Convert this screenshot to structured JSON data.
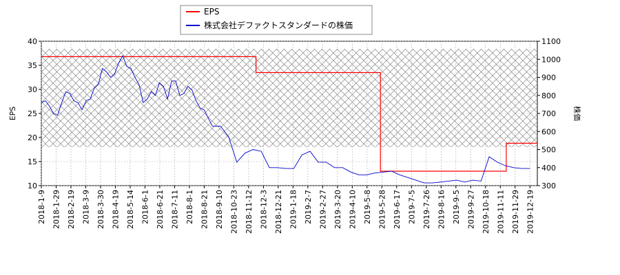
{
  "chart_data": {
    "type": "line",
    "legend": {
      "placement": "top",
      "entries": [
        {
          "label": "EPS",
          "color": "#ff0000"
        },
        {
          "label": "株式会社デファクトスタンダードの株価",
          "color": "#0000cc"
        }
      ]
    },
    "axes": {
      "y_left": {
        "label": "EPS",
        "ylim": [
          10,
          40
        ],
        "ticks": [
          "10",
          "15",
          "20",
          "25",
          "30",
          "35",
          "40"
        ]
      },
      "y_right": {
        "label": "株価",
        "ylim": [
          300,
          1100
        ],
        "ticks": [
          "300",
          "400",
          "500",
          "600",
          "700",
          "800",
          "900",
          "1000",
          "1100"
        ]
      },
      "x": {
        "ticks": [
          "2018-1-9",
          "2018-1-29",
          "2018-2-19",
          "2018-3-9",
          "2018-3-30",
          "2018-4-19",
          "2018-5-14",
          "2018-6-1",
          "2018-6-21",
          "2018-7-11",
          "2018-8-1",
          "2018-8-21",
          "2018-9-10",
          "2018-10-23",
          "2018-11-12",
          "2018-12-3",
          "2018-12-21",
          "2019-1-18",
          "2019-2-7",
          "2019-2-27",
          "2019-3-20",
          "2019-4-10",
          "2019-5-8",
          "2019-5-28",
          "2019-6-17",
          "2019-7-5",
          "2019-7-26",
          "2019-8-16",
          "2019-9-5",
          "2019-9-27",
          "2019-10-18",
          "2019-11-11",
          "2019-11-29",
          "2019-12-19"
        ]
      }
    },
    "grid": true,
    "series": [
      {
        "name": "EPS",
        "axis": "left",
        "color": "#ff0000",
        "points": [
          [
            0,
            36.8
          ],
          [
            14.5,
            36.8
          ],
          [
            14.5,
            33.5
          ],
          [
            22.9,
            33.5
          ],
          [
            22.9,
            13
          ],
          [
            31.4,
            13
          ],
          [
            31.4,
            18.8
          ],
          [
            34.5,
            18.8
          ]
        ]
      },
      {
        "name": "株式会社デファクトスタンダードの株価",
        "axis": "right",
        "color": "#0000cc",
        "points": [
          [
            0,
            760
          ],
          [
            0.5,
            770
          ],
          [
            1,
            740
          ],
          [
            1.5,
            700
          ],
          [
            2,
            690
          ],
          [
            2.5,
            760
          ],
          [
            3,
            820
          ],
          [
            3.5,
            810
          ],
          [
            4,
            770
          ],
          [
            4.5,
            760
          ],
          [
            5,
            720
          ],
          [
            5.5,
            770
          ],
          [
            6,
            780
          ],
          [
            6.5,
            840
          ],
          [
            7,
            860
          ],
          [
            7.5,
            950
          ],
          [
            8,
            930
          ],
          [
            8.5,
            900
          ],
          [
            9,
            920
          ],
          [
            9.5,
            980
          ],
          [
            10,
            1020
          ],
          [
            10.5,
            960
          ],
          [
            11,
            950
          ],
          [
            11.5,
            900
          ],
          [
            12,
            860
          ],
          [
            12.5,
            760
          ],
          [
            13,
            780
          ],
          [
            13.5,
            820
          ],
          [
            14,
            800
          ],
          [
            14.5,
            870
          ],
          [
            15,
            850
          ],
          [
            15.5,
            780
          ],
          [
            16,
            880
          ],
          [
            16.5,
            880
          ],
          [
            17,
            800
          ],
          [
            17.5,
            810
          ],
          [
            18,
            850
          ],
          [
            18.5,
            830
          ],
          [
            19,
            770
          ],
          [
            19.5,
            730
          ],
          [
            20,
            720
          ],
          [
            21,
            630
          ],
          [
            22,
            630
          ],
          [
            23,
            570
          ],
          [
            24,
            430
          ],
          [
            25,
            480
          ],
          [
            26,
            500
          ],
          [
            27,
            490
          ],
          [
            28,
            400
          ],
          [
            29,
            400
          ],
          [
            30,
            395
          ],
          [
            31,
            395
          ],
          [
            32,
            470
          ],
          [
            33,
            490
          ],
          [
            34,
            430
          ],
          [
            35,
            430
          ],
          [
            36,
            400
          ],
          [
            37,
            400
          ],
          [
            38,
            375
          ],
          [
            39,
            360
          ],
          [
            40,
            360
          ],
          [
            41,
            370
          ],
          [
            42,
            375
          ],
          [
            43,
            380
          ],
          [
            44,
            360
          ],
          [
            45,
            345
          ],
          [
            46,
            330
          ],
          [
            47,
            315
          ],
          [
            48,
            315
          ],
          [
            49,
            320
          ],
          [
            50,
            325
          ],
          [
            51,
            330
          ],
          [
            52,
            320
          ],
          [
            53,
            330
          ],
          [
            54,
            325
          ],
          [
            55,
            460
          ],
          [
            56,
            430
          ],
          [
            57,
            410
          ],
          [
            58,
            400
          ],
          [
            59,
            395
          ],
          [
            60,
            395
          ]
        ]
      }
    ]
  }
}
